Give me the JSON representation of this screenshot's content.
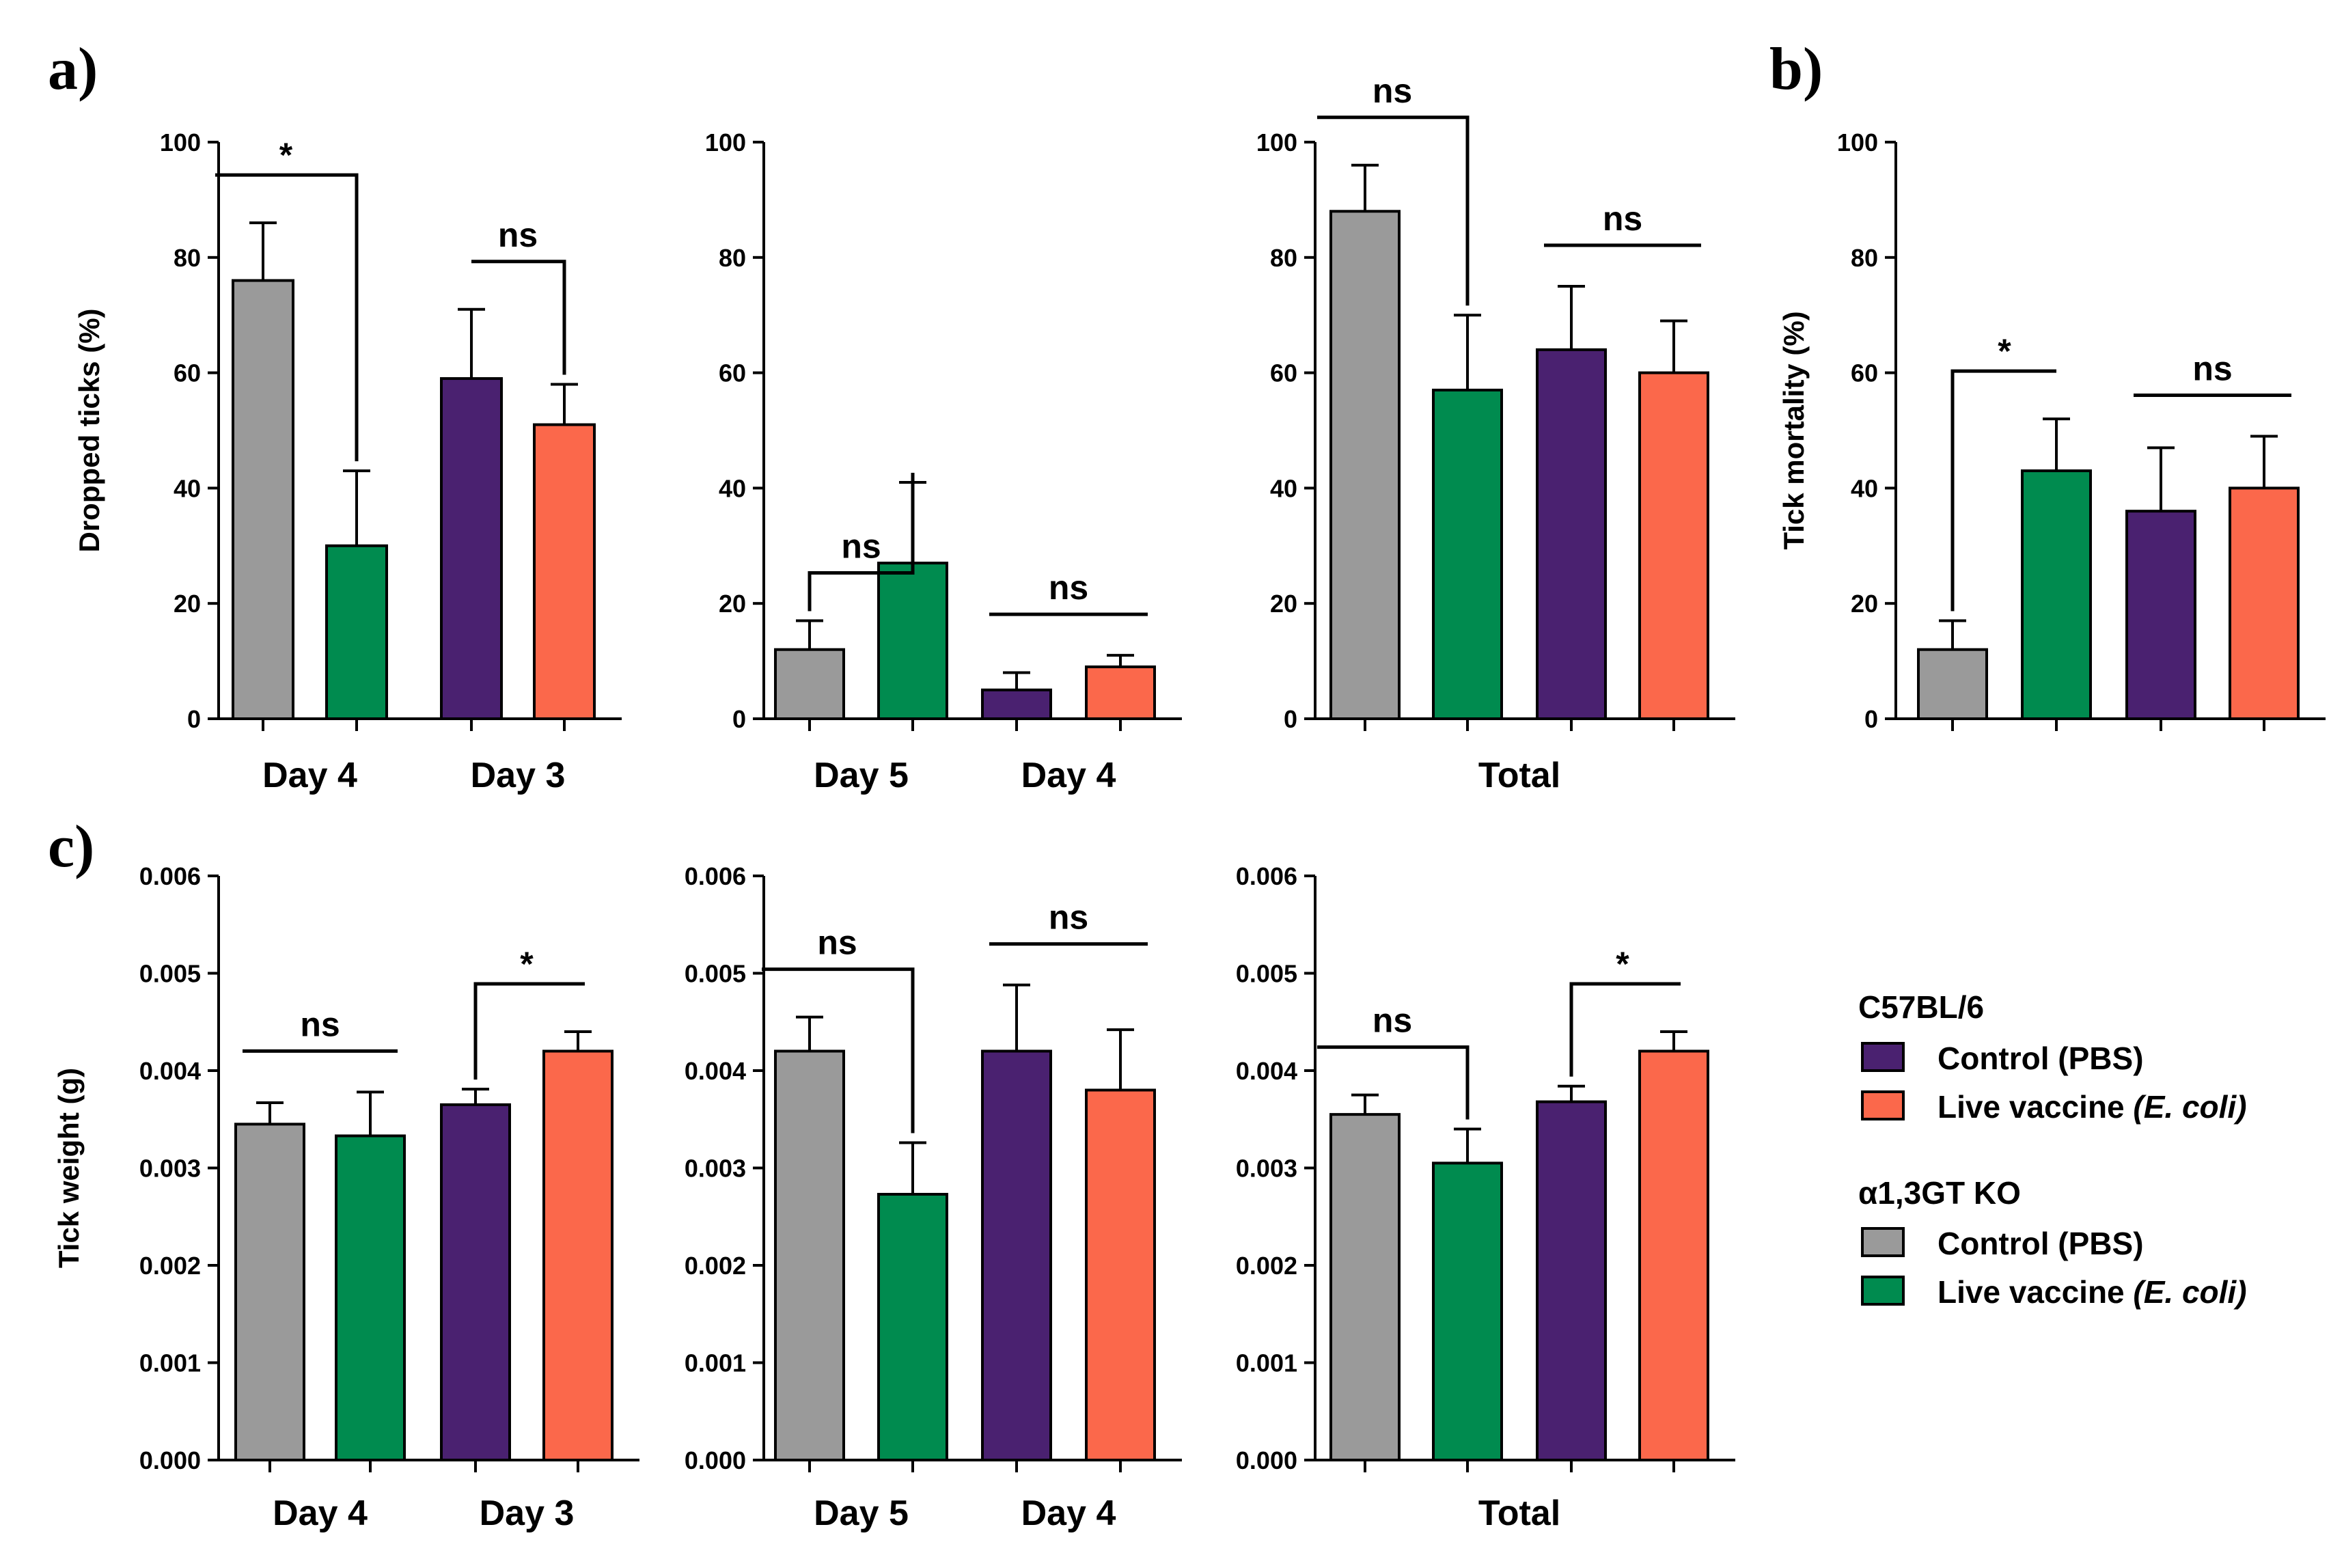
{
  "colors": {
    "ko_control": "#9a9a9a",
    "ko_vaccine": "#008b4f",
    "b6_control": "#4a2170",
    "b6_vaccine": "#fb684b"
  },
  "panel_labels": {
    "a": "a)",
    "b": "b)",
    "c": "c)"
  },
  "legend": {
    "group1_title": "C57BL/6",
    "group1_items": [
      {
        "label": "Control (PBS)",
        "italic": "",
        "color_key": "b6_control"
      },
      {
        "label": "Live vaccine ",
        "italic": "(E. coli)",
        "color_key": "b6_vaccine"
      }
    ],
    "group2_title": "α1,3GT KO",
    "group2_items": [
      {
        "label": "Control (PBS)",
        "italic": "",
        "color_key": "ko_control"
      },
      {
        "label": "Live vaccine ",
        "italic": "(E. coli)",
        "color_key": "ko_vaccine"
      }
    ]
  },
  "chart_data": [
    {
      "id": "a1",
      "type": "bar",
      "ylabel": "Dropped ticks (%)",
      "ylim": [
        0,
        100
      ],
      "yticks": [
        "0",
        "20",
        "40",
        "60",
        "80",
        "100"
      ],
      "categories": [
        "Day 4",
        "Day 3"
      ],
      "bars": [
        {
          "color_key": "ko_control",
          "value": 76,
          "err": 10
        },
        {
          "color_key": "ko_vaccine",
          "value": 30,
          "err": 13
        },
        {
          "color_key": "b6_control",
          "value": 59,
          "err": 12
        },
        {
          "color_key": "b6_vaccine",
          "value": 51,
          "err": 7
        }
      ],
      "annotations": [
        {
          "label": "*",
          "from": 0,
          "to": 1,
          "style": "drop"
        },
        {
          "label": "ns",
          "from": 2,
          "to": 3,
          "style": "drop"
        }
      ]
    },
    {
      "id": "a2",
      "type": "bar",
      "ylabel": "",
      "ylim": [
        0,
        100
      ],
      "yticks": [
        "0",
        "20",
        "40",
        "60",
        "80",
        "100"
      ],
      "categories": [
        "Day 5",
        "Day 4"
      ],
      "bars": [
        {
          "color_key": "ko_control",
          "value": 12,
          "err": 5
        },
        {
          "color_key": "ko_vaccine",
          "value": 27,
          "err": 14
        },
        {
          "color_key": "b6_control",
          "value": 5,
          "err": 3
        },
        {
          "color_key": "b6_vaccine",
          "value": 9,
          "err": 2
        }
      ],
      "annotations": [
        {
          "label": "ns",
          "from": 0,
          "to": 1,
          "style": "drop"
        },
        {
          "label": "ns",
          "from": 2,
          "to": 3,
          "style": "flat"
        }
      ]
    },
    {
      "id": "a3",
      "type": "bar",
      "ylabel": "",
      "ylim": [
        0,
        100
      ],
      "yticks": [
        "0",
        "20",
        "40",
        "60",
        "80",
        "100"
      ],
      "categories": [
        "Total"
      ],
      "bars": [
        {
          "color_key": "ko_control",
          "value": 88,
          "err": 8
        },
        {
          "color_key": "ko_vaccine",
          "value": 57,
          "err": 13
        },
        {
          "color_key": "b6_control",
          "value": 64,
          "err": 11
        },
        {
          "color_key": "b6_vaccine",
          "value": 60,
          "err": 9
        }
      ],
      "annotations": [
        {
          "label": "ns",
          "from": 0,
          "to": 1,
          "style": "drop"
        },
        {
          "label": "ns",
          "from": 2,
          "to": 3,
          "style": "flat"
        }
      ]
    },
    {
      "id": "b",
      "type": "bar",
      "ylabel": "Tick mortality (%)",
      "ylim": [
        0,
        100
      ],
      "yticks": [
        "0",
        "20",
        "40",
        "60",
        "80",
        "100"
      ],
      "categories": [],
      "bars": [
        {
          "color_key": "ko_control",
          "value": 12,
          "err": 5
        },
        {
          "color_key": "ko_vaccine",
          "value": 43,
          "err": 9
        },
        {
          "color_key": "b6_control",
          "value": 36,
          "err": 11
        },
        {
          "color_key": "b6_vaccine",
          "value": 40,
          "err": 9
        }
      ],
      "annotations": [
        {
          "label": "*",
          "from": 0,
          "to": 1,
          "style": "rise"
        },
        {
          "label": "ns",
          "from": 2,
          "to": 3,
          "style": "flat"
        }
      ]
    },
    {
      "id": "c1",
      "type": "bar",
      "ylabel": "Tick weight (g)",
      "ylim": [
        0,
        0.006
      ],
      "yticks": [
        "0.000",
        "0.001",
        "0.002",
        "0.003",
        "0.004",
        "0.005",
        "0.006"
      ],
      "categories": [
        "Day 4",
        "Day 3"
      ],
      "bars": [
        {
          "color_key": "ko_control",
          "value": 0.00345,
          "err": 0.00022
        },
        {
          "color_key": "ko_vaccine",
          "value": 0.00333,
          "err": 0.00045
        },
        {
          "color_key": "b6_control",
          "value": 0.00365,
          "err": 0.00016
        },
        {
          "color_key": "b6_vaccine",
          "value": 0.0042,
          "err": 0.0002
        }
      ],
      "annotations": [
        {
          "label": "ns",
          "from": 0,
          "to": 1,
          "style": "flat"
        },
        {
          "label": "*",
          "from": 2,
          "to": 3,
          "style": "rise"
        }
      ]
    },
    {
      "id": "c2",
      "type": "bar",
      "ylabel": "",
      "ylim": [
        0,
        0.006
      ],
      "yticks": [
        "0.000",
        "0.001",
        "0.002",
        "0.003",
        "0.004",
        "0.005",
        "0.006"
      ],
      "categories": [
        "Day 5",
        "Day 4"
      ],
      "bars": [
        {
          "color_key": "ko_control",
          "value": 0.0042,
          "err": 0.00035
        },
        {
          "color_key": "ko_vaccine",
          "value": 0.00273,
          "err": 0.00053
        },
        {
          "color_key": "b6_control",
          "value": 0.0042,
          "err": 0.00068
        },
        {
          "color_key": "b6_vaccine",
          "value": 0.0038,
          "err": 0.00062
        }
      ],
      "annotations": [
        {
          "label": "ns",
          "from": 0,
          "to": 1,
          "style": "drop"
        },
        {
          "label": "ns",
          "from": 2,
          "to": 3,
          "style": "flat"
        }
      ]
    },
    {
      "id": "c3",
      "type": "bar",
      "ylabel": "",
      "ylim": [
        0,
        0.006
      ],
      "yticks": [
        "0.000",
        "0.001",
        "0.002",
        "0.003",
        "0.004",
        "0.005",
        "0.006"
      ],
      "categories": [
        "Total"
      ],
      "bars": [
        {
          "color_key": "ko_control",
          "value": 0.00355,
          "err": 0.0002
        },
        {
          "color_key": "ko_vaccine",
          "value": 0.00305,
          "err": 0.00035
        },
        {
          "color_key": "b6_control",
          "value": 0.00368,
          "err": 0.00016
        },
        {
          "color_key": "b6_vaccine",
          "value": 0.0042,
          "err": 0.0002
        }
      ],
      "annotations": [
        {
          "label": "ns",
          "from": 0,
          "to": 1,
          "style": "drop"
        },
        {
          "label": "*",
          "from": 2,
          "to": 3,
          "style": "rise"
        }
      ]
    }
  ]
}
